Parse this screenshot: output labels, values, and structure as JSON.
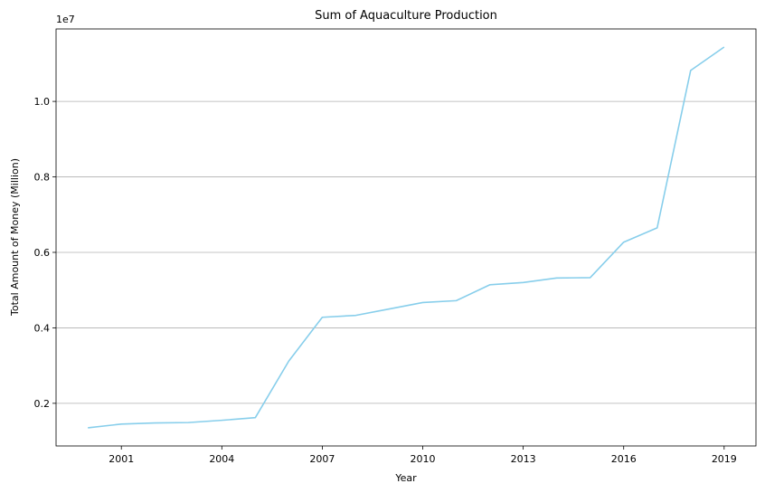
{
  "chart_data": {
    "type": "line",
    "title": "Sum of Aquaculture Production",
    "xlabel": "Year",
    "ylabel": "Total Amount of Money (Million)",
    "y_offset_label": "1e7",
    "y_scale": 10000000,
    "xlim": [
      1999.05,
      2019.95
    ],
    "ylim": [
      870000,
      11920000
    ],
    "grid": "y",
    "line_color": "#87ceeb",
    "x_ticks": [
      2001,
      2004,
      2007,
      2010,
      2013,
      2016,
      2019
    ],
    "x_tick_labels": [
      "2001",
      "2004",
      "2007",
      "2010",
      "2013",
      "2016",
      "2019"
    ],
    "y_ticks": [
      2000000,
      4000000,
      6000000,
      8000000,
      10000000
    ],
    "y_tick_labels": [
      "0.2",
      "0.4",
      "0.6",
      "0.8",
      "1.0"
    ],
    "series": [
      {
        "x": [
          2000,
          2001,
          2002,
          2003,
          2004,
          2005,
          2006,
          2007,
          2008,
          2009,
          2010,
          2011,
          2012,
          2013,
          2014,
          2015,
          2016,
          2017,
          2018,
          2019
        ],
        "values": [
          1350000,
          1450000,
          1480000,
          1490000,
          1550000,
          1620000,
          3120000,
          4280000,
          4330000,
          4500000,
          4670000,
          4720000,
          5140000,
          5200000,
          5320000,
          5330000,
          6270000,
          6650000,
          10820000,
          11440000
        ]
      }
    ]
  }
}
